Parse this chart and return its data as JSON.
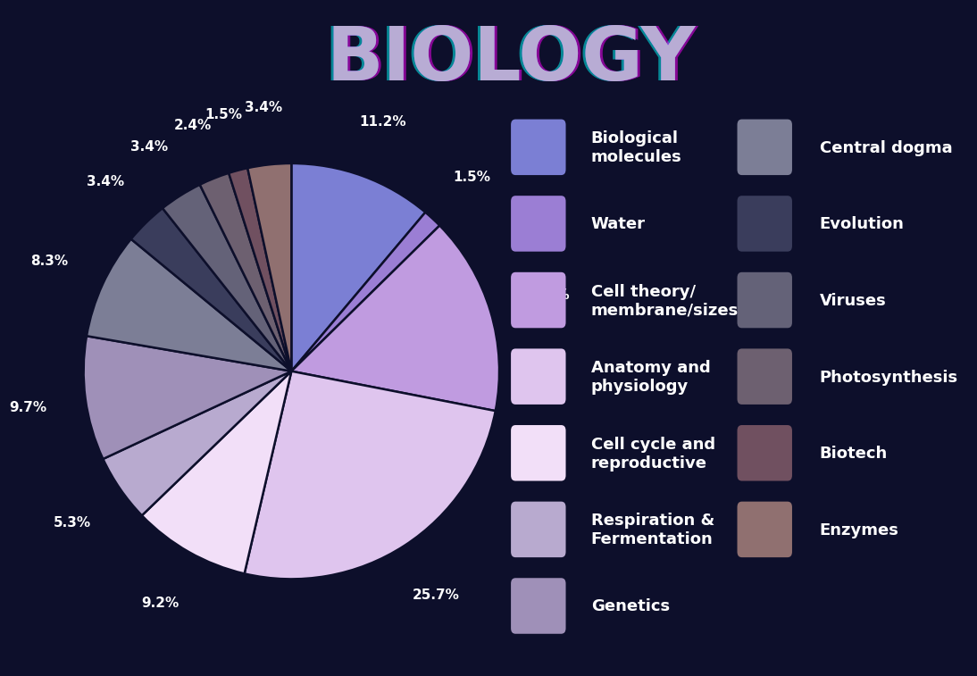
{
  "title": "BIOLOGY",
  "background_color": "#0d0f2b",
  "slices": [
    {
      "label": "Biological\nmolecules",
      "value": 11.2,
      "color": "#7b7fd4"
    },
    {
      "label": "Water",
      "value": 1.5,
      "color": "#9b7ed4"
    },
    {
      "label": "Cell theory/\nmembrane/sizes",
      "value": 15.5,
      "color": "#c09be0"
    },
    {
      "label": "Anatomy and\nphysiology",
      "value": 25.7,
      "color": "#dfc5ee"
    },
    {
      "label": "Cell cycle and\nreproductive",
      "value": 9.2,
      "color": "#f2dff8"
    },
    {
      "label": "Respiration &\nFermentation",
      "value": 5.3,
      "color": "#b8aacf"
    },
    {
      "label": "Genetics",
      "value": 9.7,
      "color": "#9f90b8"
    },
    {
      "label": "Central dogma",
      "value": 8.3,
      "color": "#7c7e96"
    },
    {
      "label": "Evolution",
      "value": 3.4,
      "color": "#3a3d5c"
    },
    {
      "label": "Viruses",
      "value": 3.4,
      "color": "#646278"
    },
    {
      "label": "Photosynthesis",
      "value": 2.4,
      "color": "#6d6070"
    },
    {
      "label": "Biotech",
      "value": 1.5,
      "color": "#705060"
    },
    {
      "label": "Enzymes",
      "value": 3.4,
      "color": "#907070"
    }
  ],
  "legend_left": [
    {
      "label": "Biological\nmolecules",
      "color": "#7b7fd4"
    },
    {
      "label": "Water",
      "color": "#9b7ed4"
    },
    {
      "label": "Cell theory/\nmembrane/sizes",
      "color": "#c09be0"
    },
    {
      "label": "Anatomy and\nphysiology",
      "color": "#dfc5ee"
    },
    {
      "label": "Cell cycle and\nreproductive",
      "color": "#f2dff8"
    },
    {
      "label": "Respiration &\nFermentation",
      "color": "#b8aacf"
    },
    {
      "label": "Genetics",
      "color": "#9f90b8"
    }
  ],
  "legend_right": [
    {
      "label": "Central dogma",
      "color": "#7c7e96"
    },
    {
      "label": "Evolution",
      "color": "#3a3d5c"
    },
    {
      "label": "Viruses",
      "color": "#646278"
    },
    {
      "label": "Photosynthesis",
      "color": "#6d6070"
    },
    {
      "label": "Biotech",
      "color": "#705060"
    },
    {
      "label": "Enzymes",
      "color": "#907070"
    }
  ],
  "text_color": "#ffffff",
  "pct_fontsize": 11,
  "legend_fontsize": 13
}
